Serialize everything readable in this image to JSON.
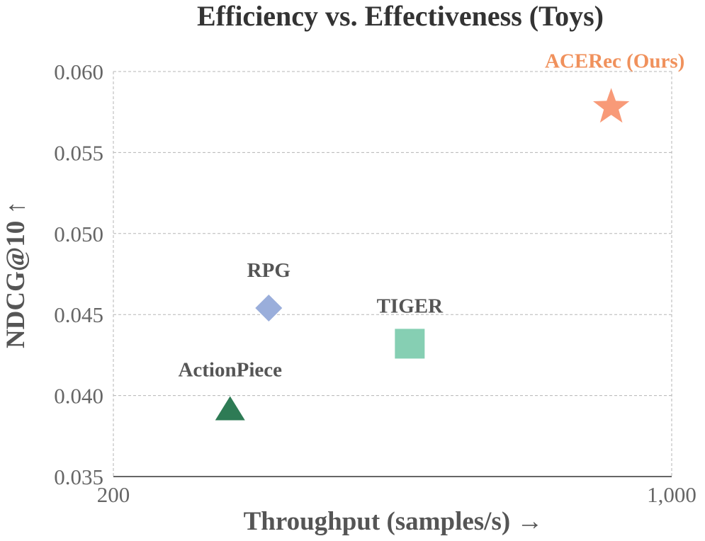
{
  "chart_data": {
    "type": "scatter",
    "title": "Efficiency vs. Effectiveness (Toys)",
    "xlabel": "Throughput (samples/s) →",
    "ylabel": "NDCG@10 ↑",
    "xscale": "log",
    "xlim": [
      200,
      1000
    ],
    "ylim": [
      0.035,
      0.06
    ],
    "xticks": [
      200,
      1000
    ],
    "xtick_labels": [
      "200",
      "1,000"
    ],
    "yticks": [
      0.035,
      0.04,
      0.045,
      0.05,
      0.055,
      0.06
    ],
    "ytick_labels": [
      "0.035",
      "0.040",
      "0.045",
      "0.050",
      "0.055",
      "0.060"
    ],
    "grid": "horizontal dashed",
    "points": [
      {
        "name": "ActionPiece",
        "x": 280,
        "y": 0.039,
        "marker": "triangle",
        "color": "#2e7b55",
        "label_color": "#555555"
      },
      {
        "name": "RPG",
        "x": 313,
        "y": 0.0454,
        "marker": "diamond",
        "color": "#9aaedb",
        "label_color": "#555555"
      },
      {
        "name": "TIGER",
        "x": 470,
        "y": 0.0432,
        "marker": "square",
        "color": "#86cfb3",
        "label_color": "#555555"
      },
      {
        "name": "ACERec (Ours)",
        "x": 840,
        "y": 0.0578,
        "marker": "star",
        "color": "#f89a78",
        "label_color": "#f0915c"
      }
    ]
  }
}
